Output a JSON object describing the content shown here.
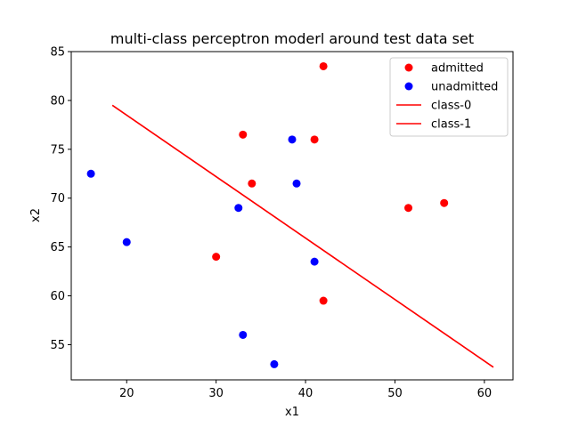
{
  "chart_data": {
    "type": "scatter",
    "title": "multi-class perceptron moderl around test data set",
    "xlabel": "x1",
    "ylabel": "x2",
    "xlim": [
      13.8,
      63.2
    ],
    "ylim": [
      51.4,
      85.0
    ],
    "x_ticks": [
      20,
      30,
      40,
      50,
      60
    ],
    "y_ticks": [
      55,
      60,
      65,
      70,
      75,
      80,
      85
    ],
    "grid": false,
    "legend_position": "top-right",
    "series": [
      {
        "name": "admitted",
        "kind": "scatter",
        "color": "#ff0000",
        "points": [
          [
            42,
            83.5
          ],
          [
            33,
            76.5
          ],
          [
            41,
            76
          ],
          [
            34,
            71.5
          ],
          [
            51.5,
            69
          ],
          [
            55.5,
            69.5
          ],
          [
            30,
            64
          ],
          [
            42,
            59.5
          ]
        ]
      },
      {
        "name": "unadmitted",
        "kind": "scatter",
        "color": "#0000ff",
        "points": [
          [
            16,
            72.5
          ],
          [
            38.5,
            76
          ],
          [
            39,
            71.5
          ],
          [
            32.5,
            69
          ],
          [
            20,
            65.5
          ],
          [
            41,
            63.5
          ],
          [
            33,
            56
          ],
          [
            36.5,
            53
          ]
        ]
      },
      {
        "name": "class-0",
        "kind": "line",
        "color": "#ff0000",
        "points": [
          [
            18.4,
            79.5
          ],
          [
            61,
            52.7
          ]
        ]
      },
      {
        "name": "class-1",
        "kind": "line",
        "color": "#ff0000",
        "points": [
          [
            18.4,
            79.5
          ],
          [
            61,
            52.7
          ]
        ]
      }
    ]
  }
}
